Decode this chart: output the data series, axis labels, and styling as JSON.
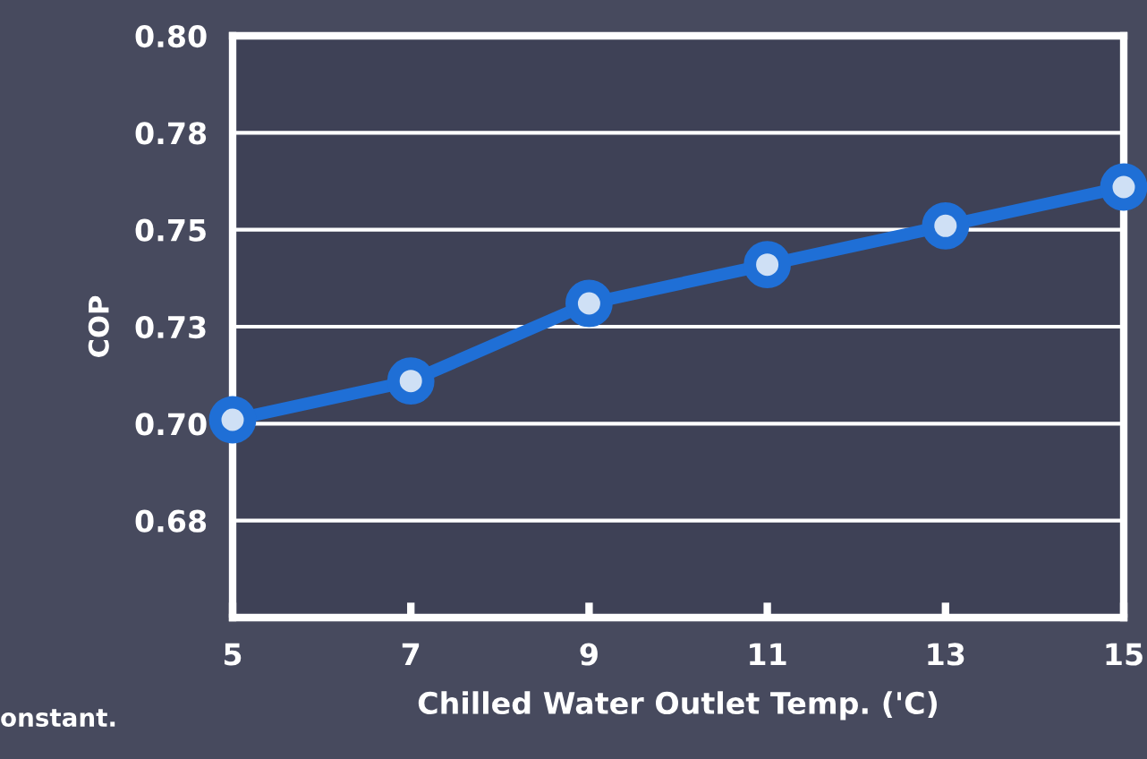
{
  "chart_data": {
    "type": "line",
    "xlabel": "Chilled Water Outlet Temp. ('C)",
    "ylabel": "COP",
    "x": [
      5,
      7,
      9,
      11,
      13,
      15
    ],
    "series": [
      {
        "color": "#1f6fd6",
        "values": [
          0.701,
          0.711,
          0.731,
          0.741,
          0.751,
          0.761
        ]
      }
    ],
    "xlim": [
      5,
      15
    ],
    "xticks": [
      5,
      7,
      9,
      11,
      13,
      15
    ],
    "ylim": [
      0.65,
      0.8
    ],
    "yticks": [
      {
        "value": 0.675,
        "label": "0.68"
      },
      {
        "value": 0.7,
        "label": "0.70"
      },
      {
        "value": 0.725,
        "label": "0.73"
      },
      {
        "value": 0.75,
        "label": "0.75"
      },
      {
        "value": 0.775,
        "label": "0.78"
      },
      {
        "value": 0.8,
        "label": "0.80"
      }
    ],
    "grid": "y",
    "marker": "circle",
    "line_style": "solid",
    "annotations": [
      "onstant."
    ]
  }
}
